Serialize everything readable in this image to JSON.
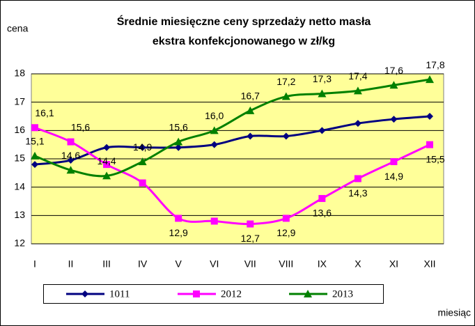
{
  "chart_data": {
    "type": "line",
    "title": "Średnie miesięczne ceny sprzedaży netto masła",
    "subtitle": "ekstra konfekcjonowanego w zł/kg",
    "ylabel": "cena",
    "xlabel": "miesiąc",
    "categories": [
      "I",
      "II",
      "III",
      "IV",
      "V",
      "VI",
      "VII",
      "VIII",
      "IX",
      "X",
      "XI",
      "XII"
    ],
    "ylim": [
      12,
      18
    ],
    "yticks": [
      12,
      13,
      14,
      15,
      16,
      17,
      18
    ],
    "grid": true,
    "legend": "bottom",
    "series": [
      {
        "name": "1011",
        "color": "#000080",
        "marker": "diamond",
        "values": [
          14.8,
          14.95,
          15.4,
          15.4,
          15.4,
          15.5,
          15.8,
          15.8,
          16.0,
          16.25,
          16.4,
          16.5
        ]
      },
      {
        "name": "2012",
        "color": "#ff00ff",
        "marker": "square",
        "values": [
          16.1,
          15.6,
          14.8,
          14.15,
          12.9,
          12.8,
          12.7,
          12.9,
          13.6,
          14.3,
          14.9,
          15.5
        ],
        "value_labels": [
          "16,1",
          "15,6",
          null,
          null,
          "12,9",
          null,
          "12,7",
          "12,9",
          "13,6",
          "14,3",
          "14,9",
          "15,5"
        ]
      },
      {
        "name": "2013",
        "color": "#008000",
        "marker": "triangle",
        "values": [
          15.1,
          14.6,
          14.4,
          14.9,
          15.6,
          16.0,
          16.7,
          17.2,
          17.3,
          17.4,
          17.6,
          17.8
        ],
        "value_labels": [
          "15,1",
          "14,6",
          "14,4",
          "14,9",
          "15,6",
          "16,0",
          "16,7",
          "17,2",
          "17,3",
          "17,4",
          "17,6",
          "17,8"
        ]
      }
    ]
  }
}
